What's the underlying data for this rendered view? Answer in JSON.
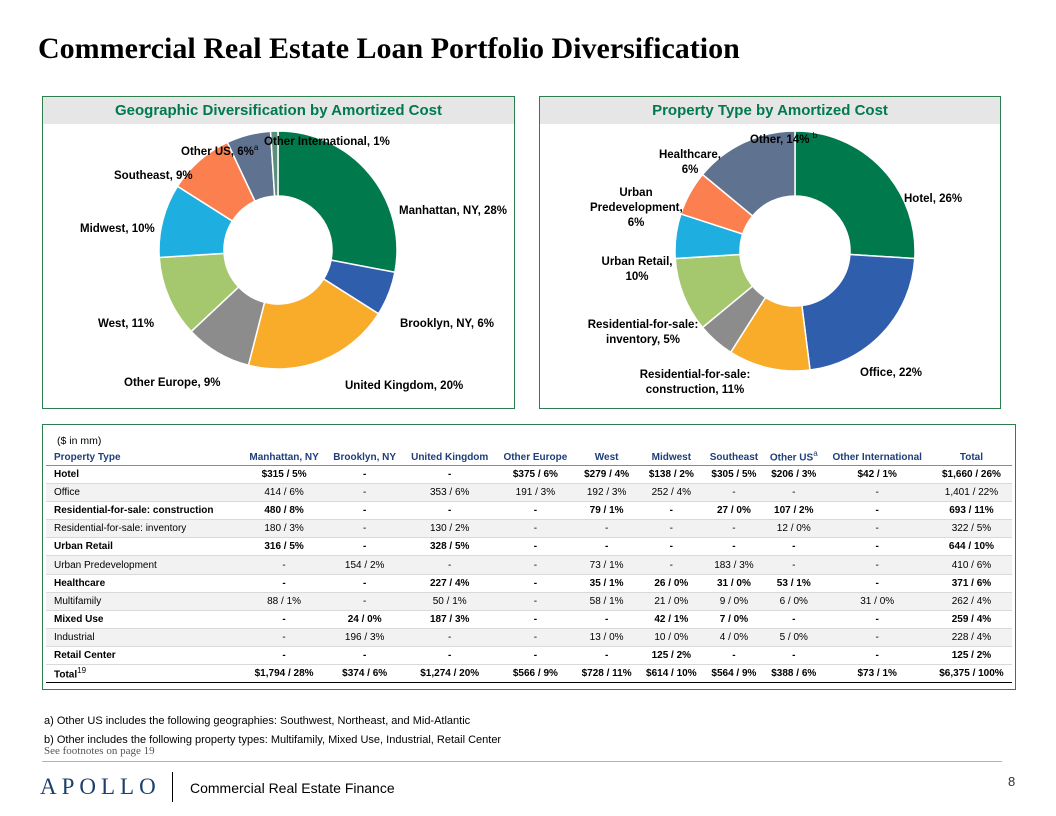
{
  "page": {
    "title": "Commercial Real Estate Loan Portfolio Diversification",
    "footnote_ref": "See footnotes on page 19",
    "logo": "APOLLO",
    "division": "Commercial Real Estate Finance",
    "page_number": "8"
  },
  "chart_data": [
    {
      "type": "pie",
      "title": "Geographic Diversification by Amortized Cost",
      "categories": [
        "Manhattan, NY",
        "Brooklyn, NY",
        "United Kingdom",
        "Other Europe",
        "West",
        "Midwest",
        "Southeast",
        "Other US",
        "Other International"
      ],
      "values": [
        28,
        6,
        20,
        9,
        11,
        10,
        9,
        6,
        1
      ],
      "data_labels": [
        "Manhattan, NY, 28%",
        "Brooklyn, NY, 6%",
        "United Kingdom, 20%",
        "Other Europe, 9%",
        "West, 11%",
        "Midwest, 10%",
        "Southeast, 9%",
        "Other US, 6%",
        "Other International, 1%"
      ],
      "colors": [
        "#007a4d",
        "#2f5fac",
        "#f9ab2a",
        "#8c8c8c",
        "#a5c86e",
        "#1eaee0",
        "#fb7f4f",
        "#5f7391",
        "#5c8e7d"
      ],
      "note_marker": "a"
    },
    {
      "type": "pie",
      "title": "Property Type by Amortized Cost",
      "categories": [
        "Hotel",
        "Office",
        "Residential-for-sale: construction",
        "Residential-for-sale: inventory",
        "Urban Retail",
        "Urban Predevelopment",
        "Healthcare",
        "Other"
      ],
      "values": [
        26,
        22,
        11,
        5,
        10,
        6,
        6,
        14
      ],
      "data_labels": [
        "Hotel, 26%",
        "Office, 22%",
        "Residential-for-sale: construction, 11%",
        "Residential-for-sale: inventory, 5%",
        "Urban Retail, 10%",
        "Urban Predevelopment, 6%",
        "Healthcare, 6%",
        "Other, 14%"
      ],
      "colors": [
        "#007a4d",
        "#2f5fac",
        "#f9ab2a",
        "#8c8c8c",
        "#a5c86e",
        "#1eaee0",
        "#fb7f4f",
        "#5f7391"
      ],
      "note_marker": "b"
    }
  ],
  "labels": {
    "geo": [
      "Manhattan, NY, 28%",
      "Brooklyn, NY, 6%",
      "United Kingdom, 20%",
      "Other Europe, 9%",
      "West, 11%",
      "Midwest, 10%",
      "Southeast, 9%",
      "Other US, 6%",
      "Other International, 1%"
    ],
    "prop": {
      "hotel": "Hotel, 26%",
      "office": "Office, 22%",
      "res_construction_1": "Residential-for-sale:",
      "res_construction_2": "construction, 11%",
      "res_inventory_1": "Residential-for-sale:",
      "res_inventory_2": "inventory, 5%",
      "urban_retail_1": "Urban Retail,",
      "urban_retail_2": "10%",
      "urban_predev_1": "Urban",
      "urban_predev_2": "Predevelopment,",
      "urban_predev_3": "6%",
      "healthcare_1": "Healthcare,",
      "healthcare_2": "6%",
      "other": "Other, 14%"
    },
    "marker_a": "a",
    "marker_b": "b"
  },
  "table": {
    "units": "($ in mm)",
    "headers": [
      "Property Type",
      "Manhattan, NY",
      "Brooklyn, NY",
      "United Kingdom",
      "Other Europe",
      "West",
      "Midwest",
      "Southeast",
      "Other US",
      "Other International",
      "Total"
    ],
    "header_other_us_marker": "a",
    "rows": [
      {
        "style": "bold",
        "cells": [
          "Hotel",
          "$315  / 5%",
          "-",
          "-",
          "$375  / 6%",
          "$279  / 4%",
          "$138  / 2%",
          "$305  / 5%",
          "$206  / 3%",
          "$42  / 1%",
          "$1,660  / 26%"
        ]
      },
      {
        "style": "shade",
        "cells": [
          "Office",
          "414  / 6%",
          "-",
          "353  / 6%",
          "191  / 3%",
          "192  / 3%",
          "252  / 4%",
          "-",
          "-",
          "-",
          "1,401  / 22%"
        ]
      },
      {
        "style": "bold",
        "cells": [
          "Residential-for-sale: construction",
          "480  / 8%",
          "-",
          "-",
          "-",
          "79  / 1%",
          "-",
          "27  / 0%",
          "107  / 2%",
          "-",
          "693  / 11%"
        ]
      },
      {
        "style": "shade",
        "cells": [
          "Residential-for-sale: inventory",
          "180  / 3%",
          "-",
          "130  / 2%",
          "-",
          "-",
          "-",
          "-",
          "12  / 0%",
          "-",
          "322  / 5%"
        ]
      },
      {
        "style": "bold",
        "cells": [
          "Urban Retail",
          "316  / 5%",
          "-",
          "328  / 5%",
          "-",
          "-",
          "-",
          "-",
          "-",
          "-",
          "644  / 10%"
        ]
      },
      {
        "style": "shade",
        "cells": [
          "Urban Predevelopment",
          "-",
          "154  / 2%",
          "-",
          "-",
          "73  / 1%",
          "-",
          "183  / 3%",
          "-",
          "-",
          "410  / 6%"
        ]
      },
      {
        "style": "bold",
        "cells": [
          "Healthcare",
          "-",
          "-",
          "227  / 4%",
          "-",
          "35  / 1%",
          "26  / 0%",
          "31  / 0%",
          "53  / 1%",
          "-",
          "371  / 6%"
        ]
      },
      {
        "style": "shade",
        "cells": [
          "Multifamily",
          "88  / 1%",
          "-",
          "50  / 1%",
          "-",
          "58  / 1%",
          "21  / 0%",
          "9  / 0%",
          "6  / 0%",
          "31  / 0%",
          "262  / 4%"
        ]
      },
      {
        "style": "bold",
        "cells": [
          "Mixed Use",
          "-",
          "24  / 0%",
          "187  / 3%",
          "-",
          "-",
          "42  / 1%",
          "7  / 0%",
          "-",
          "-",
          "259  / 4%"
        ]
      },
      {
        "style": "shade",
        "cells": [
          "Industrial",
          "-",
          "196  / 3%",
          "-",
          "-",
          "13  / 0%",
          "10  / 0%",
          "4  / 0%",
          "5  / 0%",
          "-",
          "228  / 4%"
        ]
      },
      {
        "style": "bold",
        "cells": [
          "Retail Center",
          "-",
          "-",
          "-",
          "-",
          "-",
          "125  / 2%",
          "-",
          "-",
          "-",
          "125  / 2%"
        ]
      }
    ],
    "total_row": [
      "Total",
      "$1,794 / 28%",
      "$374 / 6%",
      "$1,274 / 20%",
      "$566 / 9%",
      "$728 / 11%",
      "$614 / 10%",
      "$564 / 9%",
      "$388 / 6%",
      "$73 / 1%",
      "$6,375 / 100%"
    ],
    "total_marker": "19"
  },
  "notes": [
    "a) Other US includes the following geographies: Southwest, Northeast, and Mid-Atlantic",
    "b) Other includes the following property types: Multifamily, Mixed Use, Industrial, Retail Center"
  ]
}
